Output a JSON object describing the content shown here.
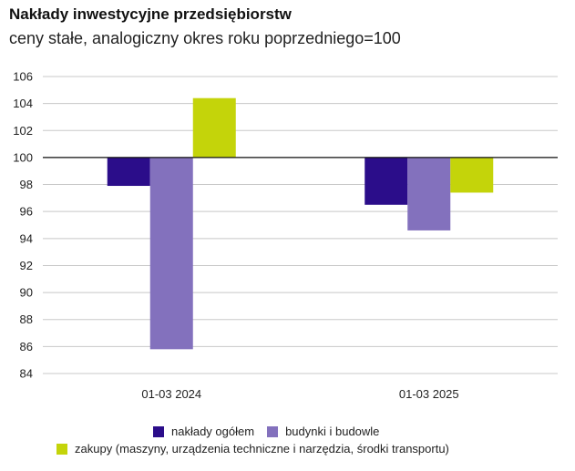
{
  "title": "Nakłady inwestycyjne przedsiębiorstw",
  "subtitle": "ceny stałe, analogiczny okres roku poprzedniego=100",
  "colors": {
    "series_1": "#2b0d8a",
    "series_2": "#8371bd",
    "series_3": "#c4d40a"
  },
  "chart_data": {
    "type": "bar",
    "categories": [
      "01-03 2024",
      "01-03 2025"
    ],
    "series": [
      {
        "name": "nakłady ogółem",
        "values": [
          97.9,
          96.5
        ]
      },
      {
        "name": "budynki i budowle",
        "values": [
          85.8,
          94.6
        ]
      },
      {
        "name": "zakupy (maszyny, urządzenia techniczne i narzędzia, środki transportu)",
        "values": [
          104.4,
          97.4
        ]
      }
    ],
    "baseline": 100,
    "ylim": [
      84,
      106
    ],
    "yticks": [
      "84",
      "86",
      "88",
      "90",
      "92",
      "94",
      "96",
      "98",
      "100",
      "102",
      "104",
      "106"
    ],
    "grid": true,
    "legend_position": "bottom"
  }
}
